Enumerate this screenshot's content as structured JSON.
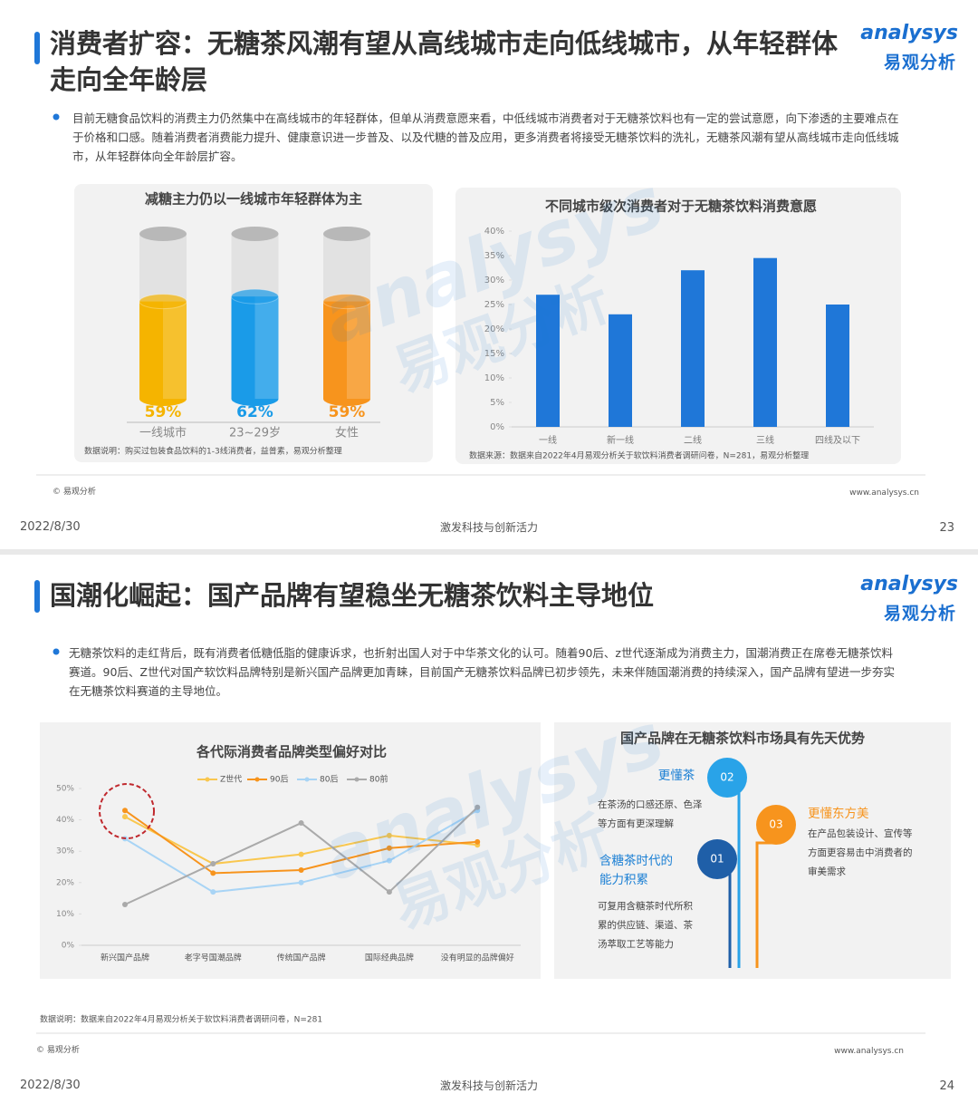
{
  "logo": {
    "en": "analysys",
    "cn": "易观分析"
  },
  "slides": [
    {
      "title": "消费者扩容：无糖茶风潮有望从高线城市走向低线城市，从年轻群体走向全年龄层",
      "bullet": "目前无糖食品饮料的消费主力仍然集中在高线城市的年轻群体，但单从消费意愿来看，中低线城市消费者对于无糖茶饮料也有一定的尝试意愿，向下渗透的主要难点在于价格和口感。随着消费者消费能力提升、健康意识进一步普及、以及代糖的普及应用，更多消费者将接受无糖茶饮料的洗礼，无糖茶风潮有望从高线城市走向低线城市，从年轻群体向全年龄层扩容。",
      "charts": [
        {
          "type": "cylinder",
          "title": "减糖主力仍以一线城市年轻群体为主",
          "categories": [
            "一线城市",
            "23~29岁",
            "女性"
          ],
          "values": [
            59,
            62,
            59
          ],
          "value_labels": [
            "59%",
            "62%",
            "59%"
          ],
          "colors": [
            "#f5b400",
            "#1a9be8",
            "#f7941d"
          ],
          "ylim": [
            0,
            100
          ],
          "note": "数据说明：购买过包装食品饮料的1-3线消费者，益普素，易观分析整理"
        },
        {
          "type": "bar",
          "title": "不同城市级次消费者对于无糖茶饮料消费意愿",
          "categories": [
            "一线",
            "新一线",
            "二线",
            "三线",
            "四线及以下"
          ],
          "values": [
            27,
            23,
            32,
            34.5,
            25
          ],
          "color": "#1f77d8",
          "ylim": [
            0,
            40
          ],
          "yticks": [
            {
              "value": 0,
              "label": "0%"
            },
            {
              "value": 5,
              "label": "5%"
            },
            {
              "value": 10,
              "label": "10%"
            },
            {
              "value": 15,
              "label": "15%"
            },
            {
              "value": 20,
              "label": "20%"
            },
            {
              "value": 25,
              "label": "25%"
            },
            {
              "value": 30,
              "label": "30%"
            },
            {
              "value": 35,
              "label": "35%"
            },
            {
              "value": 40,
              "label": "40%"
            }
          ],
          "source": "数据来源：数据来自2022年4月易观分析关于软饮料消费者调研问卷，N=281，易观分析整理"
        }
      ],
      "copyright": "© 易观分析",
      "website": "www.analysys.cn",
      "date": "2022/8/30",
      "slogan": "激发科技与创新活力",
      "page": 23
    },
    {
      "title": "国潮化崛起：国产品牌有望稳坐无糖茶饮料主导地位",
      "bullet": "无糖茶饮料的走红背后，既有消费者低糖低脂的健康诉求，也折射出国人对于中华茶文化的认可。随着90后、z世代逐渐成为消费主力，国潮消费正在席卷无糖茶饮料赛道。90后、Z世代对国产软饮料品牌特别是新兴国产品牌更加青睐，目前国产无糖茶饮料品牌已初步领先，未来伴随国潮消费的持续深入，国产品牌有望进一步夯实在无糖茶饮料赛道的主导地位。",
      "charts": [
        {
          "type": "line",
          "title": "各代际消费者品牌类型偏好对比",
          "categories": [
            "新兴国产品牌",
            "老字号国潮品牌",
            "传统国产品牌",
            "国际经典品牌",
            "没有明显的品牌偏好"
          ],
          "series": [
            {
              "name": "Z世代",
              "color": "#f9c74f",
              "values": [
                41,
                26,
                29,
                35,
                32
              ]
            },
            {
              "name": "90后",
              "color": "#f7941d",
              "values": [
                43,
                23,
                24,
                31,
                33
              ]
            },
            {
              "name": "80后",
              "color": "#a8d4f5",
              "values": [
                34,
                17,
                20,
                27,
                43
              ]
            },
            {
              "name": "80前",
              "color": "#aaaaaa",
              "values": [
                13,
                26,
                39,
                17,
                44
              ]
            }
          ],
          "ylim": [
            0,
            50
          ],
          "yticks": [
            {
              "value": 0,
              "label": "0%"
            },
            {
              "value": 10,
              "label": "10%"
            },
            {
              "value": 20,
              "label": "20%"
            },
            {
              "value": 30,
              "label": "30%"
            },
            {
              "value": 40,
              "label": "40%"
            },
            {
              "value": 50,
              "label": "50%"
            }
          ],
          "note": "数据说明：数据来自2022年4月易观分析关于软饮料消费者调研问卷，N=281"
        }
      ],
      "diagram": {
        "title": "国产品牌在无糖茶饮料市场具有先天优势",
        "items": [
          {
            "number": "02",
            "title": "更懂茶",
            "text": "在茶汤的口感还原、色泽等方面有更深理解"
          },
          {
            "number": "03",
            "title": "更懂东方美",
            "text": "在产品包装设计、宣传等方面更容易击中消费者的审美需求"
          },
          {
            "number": "01",
            "title": "含糖茶时代的能力积累",
            "text": "可复用含糖茶时代所积累的供应链、渠道、茶汤萃取工艺等能力"
          }
        ]
      },
      "copyright": "© 易观分析",
      "website": "www.analysys.cn",
      "date": "2022/8/30",
      "slogan": "激发科技与创新活力",
      "page": 24
    }
  ]
}
